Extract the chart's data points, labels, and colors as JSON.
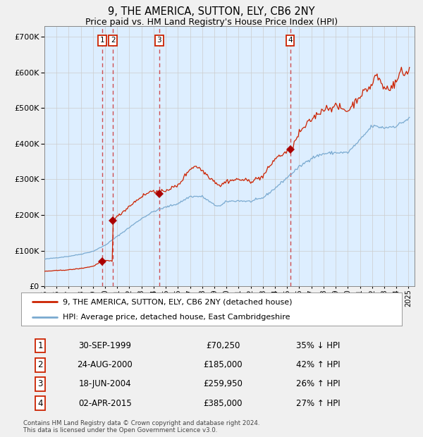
{
  "title": "9, THE AMERICA, SUTTON, ELY, CB6 2NY",
  "subtitle": "Price paid vs. HM Land Registry's House Price Index (HPI)",
  "legend_line1": "9, THE AMERICA, SUTTON, ELY, CB6 2NY (detached house)",
  "legend_line2": "HPI: Average price, detached house, East Cambridgeshire",
  "footer_line1": "Contains HM Land Registry data © Crown copyright and database right 2024.",
  "footer_line2": "This data is licensed under the Open Government Licence v3.0.",
  "table_dates": [
    "30-SEP-1999",
    "24-AUG-2000",
    "18-JUN-2004",
    "02-APR-2015"
  ],
  "table_prices": [
    "£70,250",
    "£185,000",
    "£259,950",
    "£385,000"
  ],
  "table_hpi": [
    "35% ↓ HPI",
    "42% ↑ HPI",
    "26% ↑ HPI",
    "27% ↑ HPI"
  ],
  "ylim": [
    0,
    730000
  ],
  "yticks": [
    0,
    100000,
    200000,
    300000,
    400000,
    500000,
    600000,
    700000
  ],
  "hpi_color": "#7aaad0",
  "price_color": "#cc2200",
  "marker_color": "#aa0000",
  "dashed_line_color": "#cc3333",
  "bg_chart": "#ddeeff",
  "bg_figure": "#f0f0f0",
  "grid_color": "#cccccc",
  "trans_years": [
    1999.75,
    2000.64,
    2004.46,
    2015.25
  ],
  "trans_prices": [
    70250,
    185000,
    259950,
    385000
  ],
  "xtick_years": [
    1995,
    1996,
    1997,
    1998,
    1999,
    2000,
    2001,
    2002,
    2003,
    2004,
    2005,
    2006,
    2007,
    2008,
    2009,
    2010,
    2011,
    2012,
    2013,
    2014,
    2015,
    2016,
    2017,
    2018,
    2019,
    2020,
    2021,
    2022,
    2023,
    2024,
    2025
  ]
}
